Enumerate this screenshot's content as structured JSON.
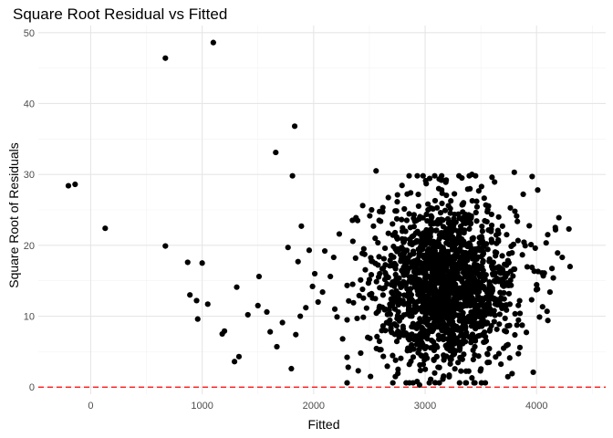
{
  "chart_data": {
    "type": "scatter",
    "title": "Square Root Residual vs Fitted",
    "xlabel": "Fitted",
    "ylabel": "Square Root of Residuals",
    "xlim": [
      -470,
      4620
    ],
    "ylim": [
      -1,
      51
    ],
    "x_ticks": [
      0,
      1000,
      2000,
      3000,
      4000
    ],
    "y_ticks": [
      0,
      10,
      20,
      30,
      40,
      50
    ],
    "grid": true,
    "legend": "none",
    "colors": {
      "points": "#000000",
      "reference_line": "#ff0000",
      "grid_major": "#e6e6e6",
      "grid_minor": "#f2f2f2"
    },
    "reference_line": {
      "y": 0,
      "style": "dashed"
    },
    "outliers": [
      [
        -200,
        28.4
      ],
      [
        -140,
        28.6
      ],
      [
        130,
        22.4
      ],
      [
        670,
        46.4
      ],
      [
        1100,
        48.6
      ],
      [
        670,
        19.9
      ],
      [
        870,
        17.6
      ],
      [
        1000,
        17.5
      ],
      [
        890,
        13.0
      ],
      [
        950,
        12.2
      ],
      [
        1050,
        11.7
      ],
      [
        960,
        9.6
      ],
      [
        1180,
        7.5
      ],
      [
        1200,
        7.9
      ],
      [
        1290,
        3.6
      ],
      [
        1330,
        4.3
      ],
      [
        1310,
        14.1
      ],
      [
        1410,
        10.2
      ],
      [
        1510,
        15.6
      ],
      [
        1500,
        11.5
      ],
      [
        1580,
        10.6
      ],
      [
        1610,
        7.8
      ],
      [
        1660,
        33.1
      ],
      [
        1670,
        5.7
      ],
      [
        1720,
        9.1
      ],
      [
        1770,
        19.7
      ],
      [
        1800,
        2.6
      ],
      [
        1810,
        29.8
      ],
      [
        1830,
        36.8
      ],
      [
        1840,
        7.4
      ],
      [
        1860,
        17.7
      ],
      [
        1890,
        22.7
      ],
      [
        1880,
        10.0
      ],
      [
        1930,
        11.2
      ],
      [
        1960,
        19.3
      ],
      [
        1990,
        14.2
      ],
      [
        2010,
        16.0
      ],
      [
        2040,
        12.0
      ],
      [
        2080,
        13.4
      ],
      [
        2100,
        19.2
      ],
      [
        2150,
        15.6
      ],
      [
        2180,
        18.3
      ],
      [
        2190,
        11.0
      ],
      [
        2210,
        9.9
      ],
      [
        2230,
        21.6
      ],
      [
        2260,
        6.8
      ],
      [
        2300,
        4.2
      ],
      [
        2310,
        2.8
      ],
      [
        2350,
        14.5
      ],
      [
        2380,
        23.9
      ],
      [
        2400,
        2.3
      ],
      [
        2450,
        19.5
      ],
      [
        2520,
        25.0
      ],
      [
        2560,
        30.5
      ],
      [
        2600,
        23.4
      ],
      [
        2930,
        29.8
      ],
      [
        2950,
        0.3
      ],
      [
        3800,
        30.3
      ],
      [
        3880,
        27.2
      ],
      [
        3950,
        20.1
      ],
      [
        3960,
        29.7
      ],
      [
        4010,
        27.8
      ],
      [
        3970,
        2.1
      ],
      [
        4050,
        16.1
      ],
      [
        4060,
        15.7
      ],
      [
        4120,
        13.4
      ],
      [
        4100,
        21.5
      ],
      [
        4150,
        15.4
      ],
      [
        4170,
        22.2
      ],
      [
        4200,
        23.9
      ],
      [
        4230,
        18.3
      ],
      [
        4290,
        22.3
      ],
      [
        4300,
        17.0
      ],
      [
        3780,
        1.9
      ],
      [
        3540,
        0.6
      ],
      [
        3420,
        1.3
      ],
      [
        3160,
        1.2
      ],
      [
        3050,
        1.1
      ],
      [
        3420,
        30.0
      ],
      [
        3150,
        29.2
      ],
      [
        3330,
        29.5
      ],
      [
        3600,
        29.6
      ],
      [
        3010,
        28.7
      ],
      [
        2870,
        27.4
      ]
    ],
    "cloud": {
      "n": 1750,
      "x_mean": 3190,
      "x_sd": 310,
      "x_range": [
        2300,
        4200
      ],
      "y_mean": 14.5,
      "y_sd": 5.7,
      "y_range": [
        0.6,
        29.8
      ],
      "seed": 20240611
    }
  }
}
